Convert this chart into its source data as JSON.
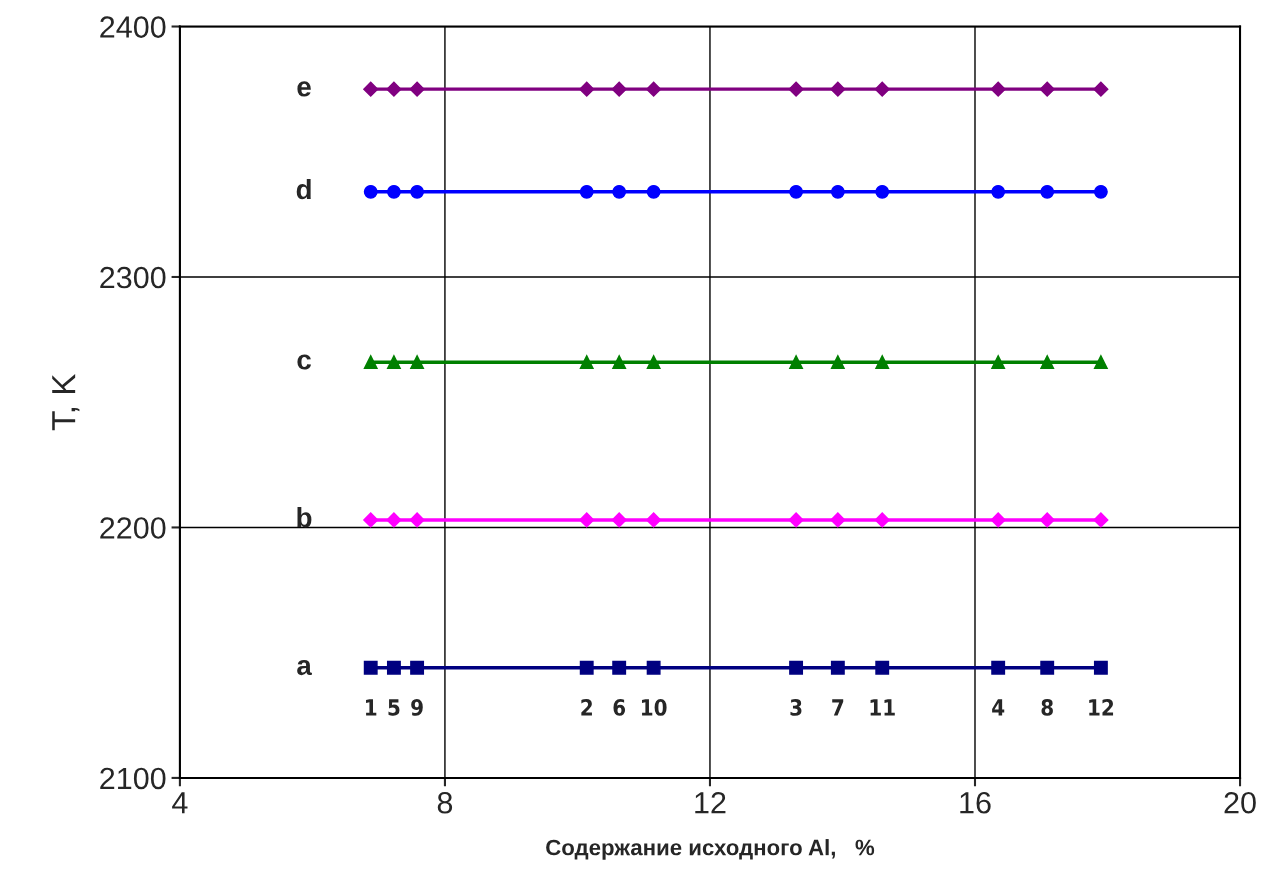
{
  "chart_data": {
    "type": "line",
    "xlabel": "Содержание исходного Al,   %",
    "ylabel": "T, K",
    "x": [
      6.88,
      7.23,
      7.58,
      10.14,
      10.63,
      11.15,
      13.3,
      13.93,
      14.6,
      16.35,
      17.09,
      17.9
    ],
    "series": [
      {
        "name": "a",
        "color": "#000080",
        "marker": "square",
        "values": [
          2144,
          2144,
          2144,
          2144,
          2144,
          2144,
          2144,
          2144,
          2144,
          2144,
          2144,
          2144
        ]
      },
      {
        "name": "b",
        "color": "#ff00ff",
        "marker": "diamond",
        "values": [
          2203,
          2203,
          2203,
          2203,
          2203,
          2203,
          2203,
          2203,
          2203,
          2203,
          2203,
          2203
        ]
      },
      {
        "name": "c",
        "color": "#008000",
        "marker": "triangle",
        "values": [
          2266,
          2266,
          2266,
          2266,
          2266,
          2266,
          2266,
          2266,
          2266,
          2266,
          2266,
          2266
        ]
      },
      {
        "name": "d",
        "color": "#0000ff",
        "marker": "circle",
        "values": [
          2334,
          2334,
          2334,
          2334,
          2334,
          2334,
          2334,
          2334,
          2334,
          2334,
          2334,
          2334
        ]
      },
      {
        "name": "e",
        "color": "#800080",
        "marker": "diamond",
        "values": [
          2375,
          2375,
          2375,
          2375,
          2375,
          2375,
          2375,
          2375,
          2375,
          2375,
          2375,
          2375
        ]
      }
    ],
    "annotations": [
      {
        "text": "1",
        "x": 6.88,
        "y": 2144
      },
      {
        "text": "5",
        "x": 7.23,
        "y": 2144
      },
      {
        "text": "9",
        "x": 7.58,
        "y": 2144
      },
      {
        "text": "2",
        "x": 10.14,
        "y": 2144
      },
      {
        "text": "6",
        "x": 10.63,
        "y": 2144
      },
      {
        "text": "10",
        "x": 11.15,
        "y": 2144
      },
      {
        "text": "3",
        "x": 13.3,
        "y": 2144
      },
      {
        "text": "7",
        "x": 13.93,
        "y": 2144
      },
      {
        "text": "11",
        "x": 14.6,
        "y": 2144
      },
      {
        "text": "4",
        "x": 16.35,
        "y": 2144
      },
      {
        "text": "8",
        "x": 17.09,
        "y": 2144
      },
      {
        "text": "12",
        "x": 17.9,
        "y": 2144
      }
    ],
    "xlim": [
      4,
      20
    ],
    "xticks": [
      4,
      8,
      12,
      16,
      20
    ],
    "ylim": [
      2100,
      2400
    ],
    "yticks": [
      2100,
      2200,
      2300,
      2400
    ],
    "grid": true,
    "legend": false
  }
}
